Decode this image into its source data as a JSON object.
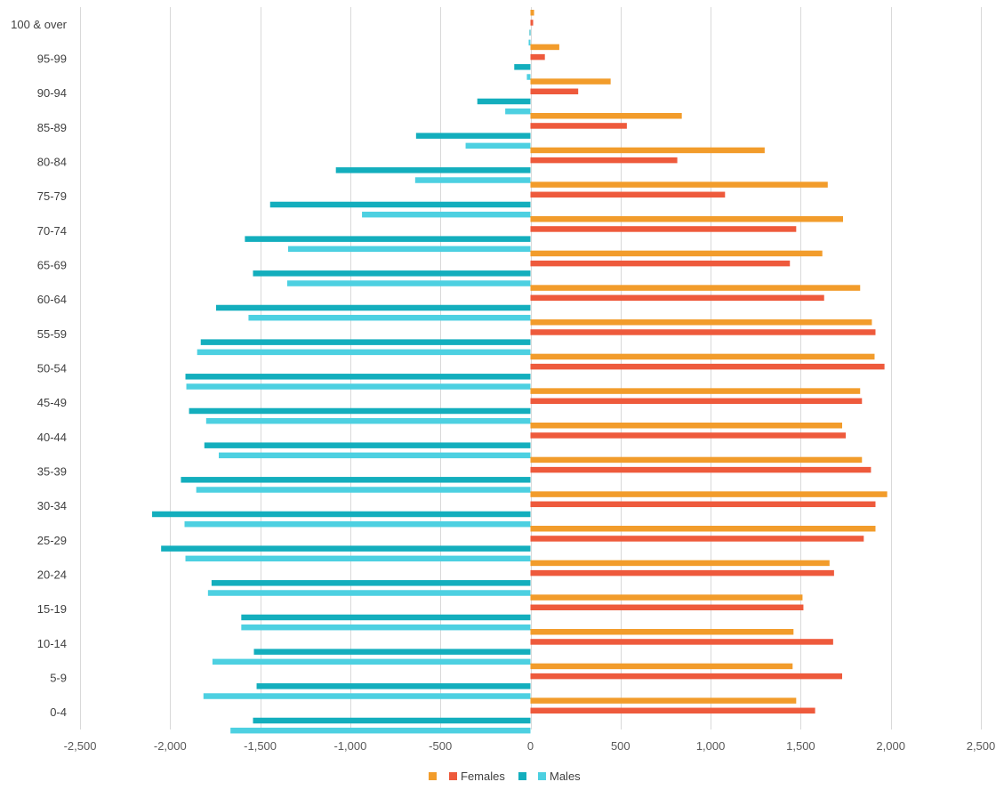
{
  "chart_data": {
    "type": "bar",
    "orientation": "horizontal",
    "categories": [
      "0-4",
      "5-9",
      "10-14",
      "15-19",
      "20-24",
      "25-29",
      "30-34",
      "35-39",
      "40-44",
      "45-49",
      "50-54",
      "55-59",
      "60-64",
      "65-69",
      "70-74",
      "75-79",
      "80-84",
      "85-89",
      "90-94",
      "95-99",
      "100 & over"
    ],
    "series": [
      {
        "name": "",
        "color": "#f29c2b",
        "values": [
          1475,
          1455,
          1460,
          1510,
          1660,
          1915,
          1980,
          1840,
          1730,
          1830,
          1910,
          1895,
          1830,
          1620,
          1735,
          1650,
          1300,
          840,
          445,
          160,
          20
        ]
      },
      {
        "name": "Females",
        "color": "#ee5a3c",
        "values": [
          1580,
          1730,
          1680,
          1515,
          1685,
          1850,
          1915,
          1890,
          1750,
          1840,
          1965,
          1915,
          1630,
          1440,
          1475,
          1080,
          815,
          535,
          265,
          80,
          15
        ]
      },
      {
        "name": "",
        "color": "#13aebd",
        "values": [
          -1540,
          -1520,
          -1535,
          -1605,
          -1770,
          -2050,
          -2100,
          -1940,
          -1810,
          -1895,
          -1915,
          -1830,
          -1745,
          -1540,
          -1585,
          -1445,
          -1080,
          -635,
          -295,
          -90,
          -5
        ]
      },
      {
        "name": "Males",
        "color": "#4dd0e1",
        "values": [
          -1665,
          -1815,
          -1765,
          -1605,
          -1790,
          -1915,
          -1920,
          -1855,
          -1730,
          -1800,
          -1910,
          -1850,
          -1565,
          -1350,
          -1345,
          -935,
          -640,
          -360,
          -140,
          -20,
          -10
        ]
      }
    ],
    "xlim": [
      -2500,
      2500
    ],
    "xticks": [
      -2500,
      -2000,
      -1500,
      -1000,
      -500,
      0,
      500,
      1000,
      1500,
      2000,
      2500
    ],
    "xtick_labels": [
      "-2,500",
      "-2,000",
      "-1,500",
      "-1,000",
      "-500",
      "0",
      "500",
      "1,000",
      "1,500",
      "2,000",
      "2,500"
    ],
    "grid": "vertical",
    "legend": "bottom",
    "legend_entries": [
      "",
      "Females",
      "",
      "Males"
    ],
    "title": "",
    "xlabel": "",
    "ylabel": ""
  }
}
